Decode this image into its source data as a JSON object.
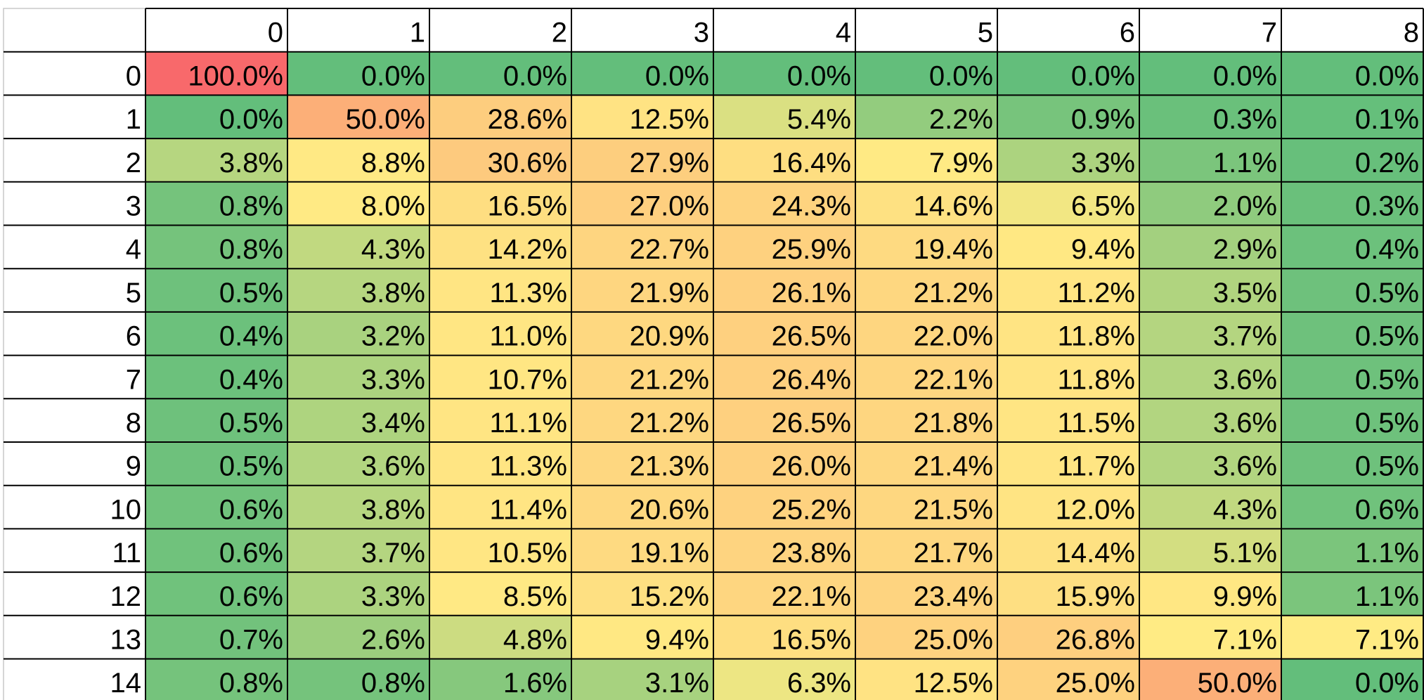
{
  "chart_data": {
    "type": "heatmap",
    "title": "",
    "xlabel": "",
    "ylabel": "",
    "color_scale": {
      "low": "#63be7b",
      "mid": "#ffeb84",
      "high": "#f8696b"
    },
    "column_labels": [
      "0",
      "1",
      "2",
      "3",
      "4",
      "5",
      "6",
      "7",
      "8"
    ],
    "row_labels": [
      "0",
      "1",
      "2",
      "3",
      "4",
      "5",
      "6",
      "7",
      "8",
      "9",
      "10",
      "11",
      "12",
      "13",
      "14"
    ],
    "values": [
      [
        100.0,
        0.0,
        0.0,
        0.0,
        0.0,
        0.0,
        0.0,
        0.0,
        0.0
      ],
      [
        0.0,
        50.0,
        28.6,
        12.5,
        5.4,
        2.2,
        0.9,
        0.3,
        0.1
      ],
      [
        3.8,
        8.8,
        30.6,
        27.9,
        16.4,
        7.9,
        3.3,
        1.1,
        0.2
      ],
      [
        0.8,
        8.0,
        16.5,
        27.0,
        24.3,
        14.6,
        6.5,
        2.0,
        0.3
      ],
      [
        0.8,
        4.3,
        14.2,
        22.7,
        25.9,
        19.4,
        9.4,
        2.9,
        0.4
      ],
      [
        0.5,
        3.8,
        11.3,
        21.9,
        26.1,
        21.2,
        11.2,
        3.5,
        0.5
      ],
      [
        0.4,
        3.2,
        11.0,
        20.9,
        26.5,
        22.0,
        11.8,
        3.7,
        0.5
      ],
      [
        0.4,
        3.3,
        10.7,
        21.2,
        26.4,
        22.1,
        11.8,
        3.6,
        0.5
      ],
      [
        0.5,
        3.4,
        11.1,
        21.2,
        26.5,
        21.8,
        11.5,
        3.6,
        0.5
      ],
      [
        0.5,
        3.6,
        11.3,
        21.3,
        26.0,
        21.4,
        11.7,
        3.6,
        0.5
      ],
      [
        0.6,
        3.8,
        11.4,
        20.6,
        25.2,
        21.5,
        12.0,
        4.3,
        0.6
      ],
      [
        0.6,
        3.7,
        10.5,
        19.1,
        23.8,
        21.7,
        14.4,
        5.1,
        1.1
      ],
      [
        0.6,
        3.3,
        8.5,
        15.2,
        22.1,
        23.4,
        15.9,
        9.9,
        1.1
      ],
      [
        0.7,
        2.6,
        4.8,
        9.4,
        16.5,
        25.0,
        26.8,
        7.1,
        7.1
      ],
      [
        0.8,
        0.8,
        1.6,
        3.1,
        6.3,
        12.5,
        25.0,
        50.0,
        0.0
      ]
    ],
    "value_format": "percent_1dp"
  }
}
